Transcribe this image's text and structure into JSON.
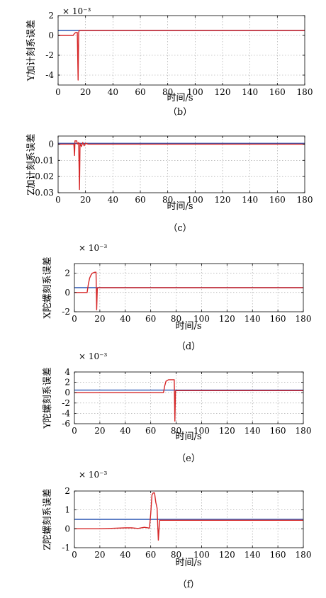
{
  "chart_data": [
    {
      "type": "line",
      "caption": "（b）",
      "xlabel": "时间/s",
      "ylabel": "Y加计刻系误差",
      "multiplier": "× 10⁻³",
      "xlim": [
        0,
        180
      ],
      "ylim": [
        -5,
        2
      ],
      "xticks": [
        0,
        20,
        40,
        60,
        80,
        100,
        120,
        140,
        160,
        180
      ],
      "yticks": [
        -4,
        -2,
        0,
        2
      ],
      "grid": true,
      "series": [
        {
          "color": "#2a56b4",
          "x": [
            0,
            180
          ],
          "y": [
            0.5,
            0.5
          ]
        },
        {
          "color": "#d62728",
          "x": [
            0,
            11,
            12,
            13,
            14,
            14.6,
            15,
            15.4,
            16,
            20,
            180
          ],
          "y": [
            0,
            0,
            0.2,
            0.3,
            0.3,
            -4.5,
            0.3,
            0.5,
            0.5,
            0.5,
            0.5
          ]
        }
      ]
    },
    {
      "type": "line",
      "caption": "（c）",
      "xlabel": "时间/s",
      "ylabel": "Z加计刻系误差",
      "multiplier": "",
      "xlim": [
        0,
        180
      ],
      "ylim": [
        -0.03,
        0.005
      ],
      "xticks": [
        0,
        20,
        40,
        60,
        80,
        100,
        120,
        140,
        160,
        180
      ],
      "yticks": [
        -0.03,
        -0.02,
        -0.01,
        0
      ],
      "ytick_labels": [
        "-0.03",
        "-0.02",
        "-0.01",
        "0"
      ],
      "grid": true,
      "series": [
        {
          "color": "#2a56b4",
          "x": [
            0,
            180
          ],
          "y": [
            0.0005,
            0.0005
          ]
        },
        {
          "color": "#d62728",
          "x": [
            0,
            11.5,
            12,
            12.3,
            12.8,
            13.2,
            13.6,
            14,
            15,
            15.6,
            16,
            17,
            18,
            19,
            20,
            22,
            180
          ],
          "y": [
            0,
            0,
            -0.007,
            0.002,
            0.002,
            0.002,
            0.002,
            0,
            0.001,
            -0.028,
            0.0005,
            -0.0015,
            0.001,
            -0.001,
            0.0005,
            0,
            0
          ]
        }
      ]
    },
    {
      "type": "line",
      "caption": "（d）",
      "xlabel": "时间/s",
      "ylabel": "X陀螺刻系误差",
      "multiplier": "× 10⁻³",
      "xlim": [
        0,
        180
      ],
      "ylim": [
        -2,
        3
      ],
      "xticks": [
        0,
        20,
        40,
        60,
        80,
        100,
        120,
        140,
        160,
        180
      ],
      "yticks": [
        -2,
        0,
        2
      ],
      "grid": true,
      "series": [
        {
          "color": "#2a56b4",
          "x": [
            0,
            180
          ],
          "y": [
            0.5,
            0.5
          ]
        },
        {
          "color": "#d62728",
          "x": [
            0,
            10,
            11,
            12,
            13,
            14,
            15,
            16,
            17,
            17.5,
            18,
            18.5,
            19,
            20,
            180
          ],
          "y": [
            0,
            0,
            0.9,
            1.5,
            1.8,
            2.0,
            2.05,
            2.1,
            2.1,
            -1.8,
            0.4,
            0.5,
            0.5,
            0.5,
            0.5
          ]
        }
      ]
    },
    {
      "type": "line",
      "caption": "（e）",
      "xlabel": "时间/s",
      "ylabel": "Y陀螺刻系误差",
      "multiplier": "× 10⁻³",
      "xlim": [
        0,
        180
      ],
      "ylim": [
        -6,
        4
      ],
      "xticks": [
        0,
        20,
        40,
        60,
        80,
        100,
        120,
        140,
        160,
        180
      ],
      "yticks": [
        -6,
        -4,
        -2,
        0,
        2,
        4
      ],
      "grid": true,
      "series": [
        {
          "color": "#2a56b4",
          "x": [
            0,
            180
          ],
          "y": [
            0.5,
            0.5
          ]
        },
        {
          "color": "#d62728",
          "x": [
            0,
            70,
            71,
            72,
            74,
            77,
            78.5,
            79,
            79.5,
            80,
            81,
            180
          ],
          "y": [
            0,
            0,
            1.3,
            2.2,
            2.5,
            2.5,
            2.5,
            -5.5,
            0.3,
            0.4,
            0.4,
            0.4
          ]
        }
      ]
    },
    {
      "type": "line",
      "caption": "（f）",
      "xlabel": "时间/s",
      "ylabel": "Z陀螺刻系误差",
      "multiplier": "× 10⁻³",
      "xlim": [
        0,
        180
      ],
      "ylim": [
        -1,
        2
      ],
      "xticks": [
        0,
        20,
        40,
        60,
        80,
        100,
        120,
        140,
        160,
        180
      ],
      "yticks": [
        -1,
        0,
        1,
        2
      ],
      "grid": true,
      "series": [
        {
          "color": "#2a56b4",
          "x": [
            0,
            180
          ],
          "y": [
            0.5,
            0.5
          ]
        },
        {
          "color": "#d62728",
          "x": [
            0,
            20,
            40,
            45,
            50,
            55,
            59,
            60,
            61,
            62,
            63,
            64,
            65,
            66,
            67,
            68,
            70,
            180
          ],
          "y": [
            0,
            0,
            0.05,
            0.05,
            0.02,
            0.08,
            0.04,
            0.8,
            1.8,
            1.9,
            1.9,
            1.4,
            1.1,
            -0.6,
            0.45,
            0.45,
            0.45,
            0.45
          ]
        }
      ]
    }
  ]
}
